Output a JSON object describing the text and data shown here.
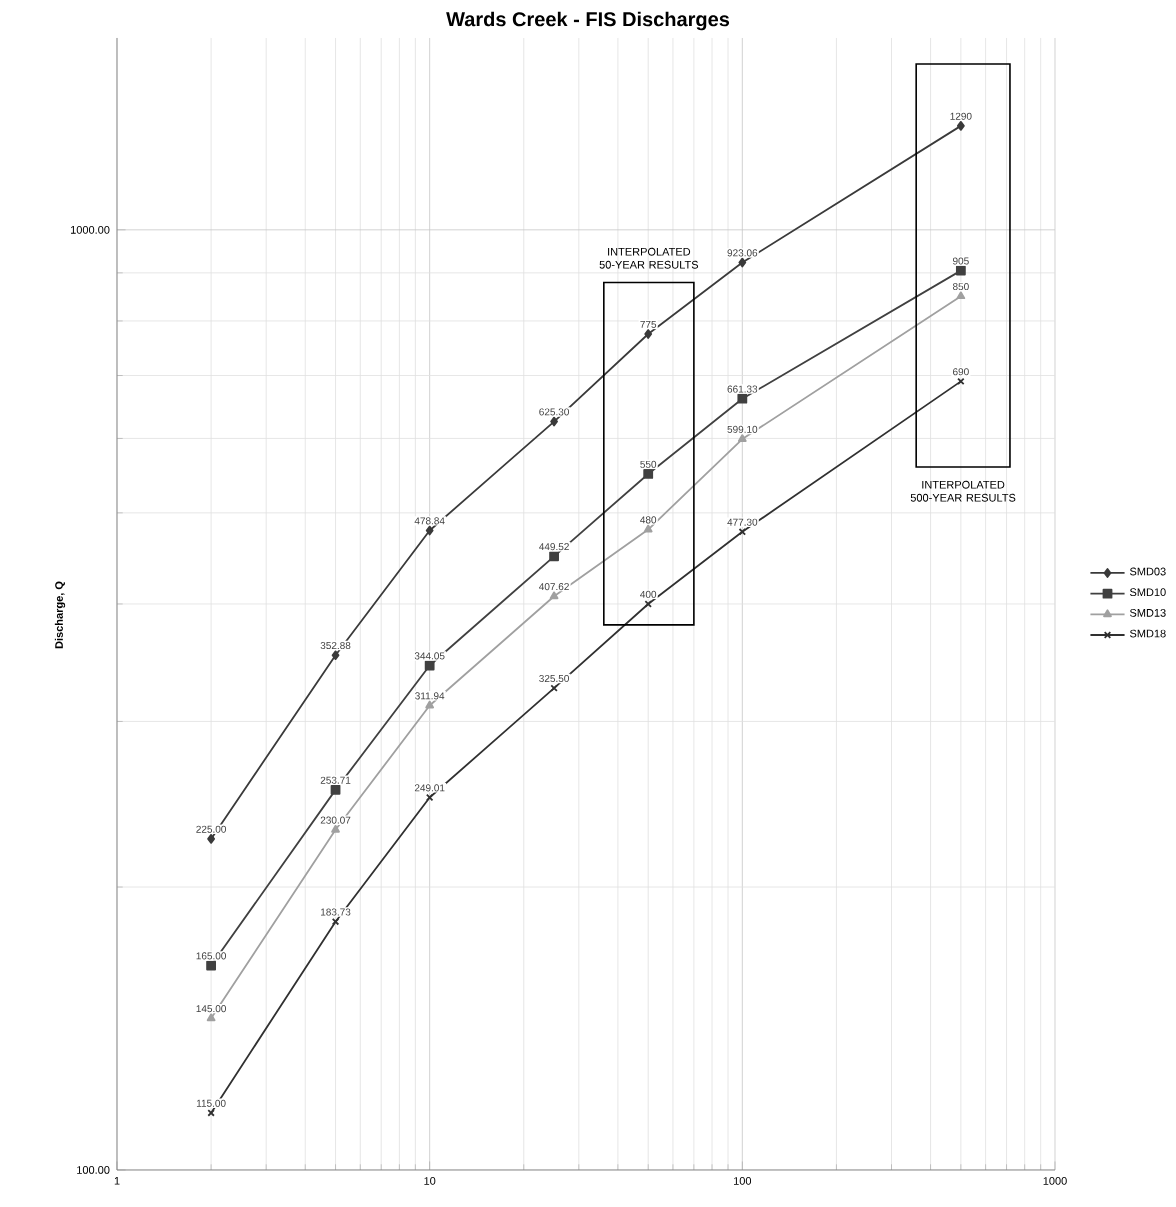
{
  "chart_data": {
    "type": "line",
    "title": "Wards Creek - FIS Discharges",
    "ylabel": "Discharge, Q",
    "log": "xy",
    "grid": true,
    "legend": "right",
    "line_style": "solid",
    "x": [
      2,
      5,
      10,
      25,
      50,
      100,
      500
    ],
    "xlim": [
      1,
      1000
    ],
    "xticks": [
      1,
      10,
      100,
      1000
    ],
    "ylim": [
      100,
      1600
    ],
    "yticks": [
      {
        "value": 100,
        "label": "100.00"
      },
      {
        "value": 1000,
        "label": "1000.00"
      }
    ],
    "series": [
      {
        "name": "SMD03",
        "color": "#3a3a3a",
        "marker": "diamond",
        "values": [
          225,
          352.88,
          478.84,
          625.3,
          775,
          923.06,
          1290
        ],
        "value_labels": [
          "225.00",
          "352.88",
          "478.84",
          "625.30",
          "775",
          "923.06",
          "1290"
        ]
      },
      {
        "name": "SMD10",
        "color": "#404040",
        "marker": "square",
        "values": [
          165,
          253.71,
          344.05,
          449.52,
          550,
          661.33,
          905
        ],
        "value_labels": [
          "165.00",
          "253.71",
          "344.05",
          "449.52",
          "550",
          "661.33",
          "905"
        ]
      },
      {
        "name": "SMD13",
        "color": "#a0a0a0",
        "marker": "triangle",
        "values": [
          145,
          230.07,
          311.94,
          407.62,
          480,
          599.1,
          850
        ],
        "value_labels": [
          "145.00",
          "230.07",
          "311.94",
          "407.62",
          "480",
          "599.10",
          "850"
        ]
      },
      {
        "name": "SMD18",
        "color": "#303030",
        "marker": "cross",
        "values": [
          115,
          183.73,
          249.01,
          325.5,
          400,
          477.3,
          690
        ],
        "value_labels": [
          "115.00",
          "183.73",
          "249.01",
          "325.50",
          "400",
          "477.30",
          "690"
        ]
      }
    ],
    "annotations": [
      "INTERPOLATED 50-YEAR RESULTS",
      "INTERPOLATED 500-YEAR RESULTS"
    ]
  }
}
